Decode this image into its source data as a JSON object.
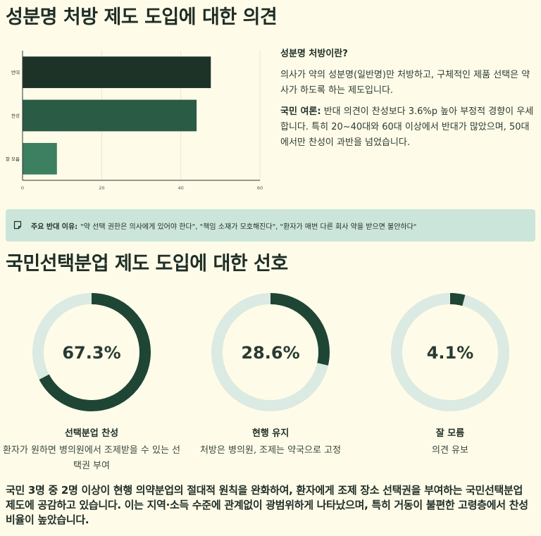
{
  "section1": {
    "title": "성분명 처방 제도 도입에 대한 의견"
  },
  "chart_data": [
    {
      "type": "bar",
      "orientation": "horizontal",
      "categories": [
        "반대",
        "찬성",
        "잘 모름"
      ],
      "values": [
        47.5,
        43.9,
        8.6
      ],
      "xlim": [
        0,
        60
      ],
      "xticks": [
        "0",
        "20",
        "40",
        "60"
      ],
      "grid": true,
      "colors": [
        "#1d3327",
        "#2a5b45",
        "#3d7f61"
      ]
    },
    {
      "type": "pie",
      "variant": "donut",
      "segments": [
        {
          "label": "선택분업 찬성",
          "value": 67.3,
          "display": "67.3%",
          "desc": "환자가 원하면 병의원에서 조제받을 수 있는 선택권 부여"
        },
        {
          "label": "현행 유지",
          "value": 28.6,
          "display": "28.6%",
          "desc": "처방은 병의원, 조제는 약국으로 고정"
        },
        {
          "label": "잘 모름",
          "value": 4.1,
          "display": "4.1%",
          "desc": "의견 유보"
        }
      ],
      "colors": {
        "fill": "#1f4535",
        "track": "#dbeae3"
      }
    }
  ],
  "info": {
    "heading": "성분명 처방이란?",
    "definition": "의사가 약의 성분명(일반명)만 처방하고, 구체적인 제품 선택은 약사가 하도록 하는 제도입니다.",
    "opinion_label": "국민 여론:",
    "opinion_text": " 반대 의견이 찬성보다 3.6%p 높아 부정적 경향이 우세합니다. 특히 20~40대와 60대 이상에서 반대가 많았으며, 50대에서만 찬성이 과반을 넘었습니다."
  },
  "callout": {
    "icon": "note-icon",
    "label": "주요 반대 이유:",
    "text": "\"약 선택 권한은 의사에게 있어야 한다\", \"책임 소재가 모호해진다\", \"환자가 매번 다른 회사 약을 받으면 불안하다\""
  },
  "section2": {
    "title": "국민선택분업 제도 도입에 대한 선호"
  },
  "summary": "국민 3명 중 2명 이상이 현행 의약분업의 절대적 원칙을 완화하여, 환자에게 조제 장소 선택권을 부여하는 국민선택분업 제도에 공감하고 있습니다. 이는 지역·소득 수준에 관계없이 광범위하게 나타났으며, 특히 거동이 불편한 고령층에서 찬성 비율이 높았습니다."
}
